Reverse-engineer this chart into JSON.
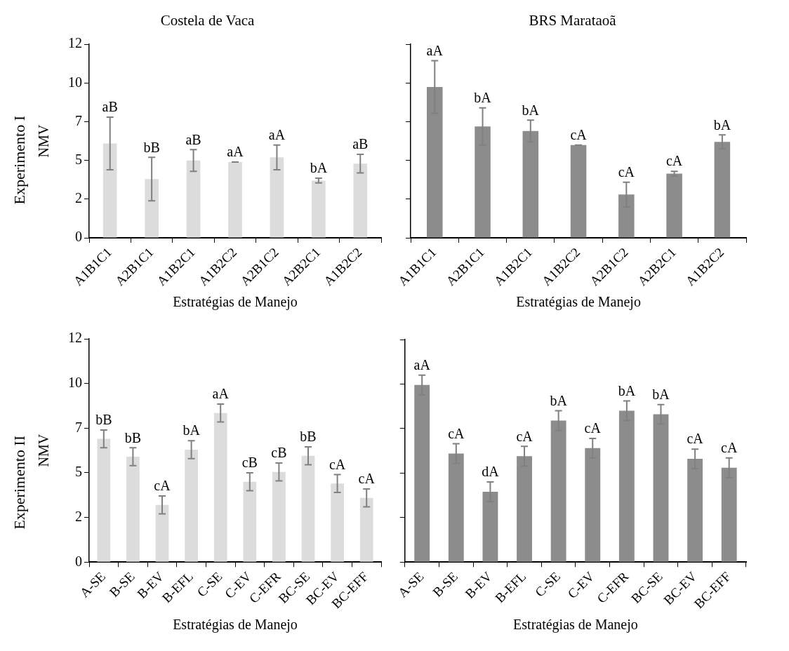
{
  "chart_data": [
    {
      "type": "bar",
      "title": "Costela de Vaca",
      "xlabel": "Estratégias de Manejo",
      "ylabel": "NMV",
      "annotations": [
        "Experimento I"
      ],
      "categories": [
        "A1B1C1",
        "A2B1C1",
        "A1B2C1",
        "A1B2C2",
        "A2B1C2",
        "A2B2C1",
        "A1B2C2"
      ],
      "values": [
        6.1,
        3.8,
        5.0,
        4.9,
        5.2,
        3.7,
        4.8
      ],
      "errors": [
        1.7,
        1.4,
        0.7,
        0,
        0.8,
        0.15,
        0.6
      ],
      "value_labels": [
        "aB",
        "bB",
        "aB",
        "aA",
        "aA",
        "bA",
        "aB"
      ],
      "color": "#dcdcdc",
      "ylim": [
        0,
        12.5
      ],
      "yticks": [
        0,
        {
          "value": 2.5,
          "label": "2"
        },
        5,
        {
          "value": 7.5,
          "label": "7"
        },
        10,
        {
          "value": 12.5,
          "label": "12"
        }
      ],
      "grid": false,
      "legend": false
    },
    {
      "type": "bar",
      "title": "BRS Marataoã",
      "xlabel": "Estratégias de Manejo",
      "categories": [
        "A1B1C1",
        "A2B1C1",
        "A1B2C1",
        "A1B2C2",
        "A2B1C2",
        "A2B2C1",
        "A1B2C2"
      ],
      "values": [
        9.75,
        7.2,
        6.9,
        6.0,
        2.8,
        4.15,
        6.2
      ],
      "errors": [
        1.7,
        1.2,
        0.7,
        0,
        0.8,
        0.15,
        0.45
      ],
      "value_labels": [
        "aA",
        "bA",
        "bA",
        "cA",
        "cA",
        "cA",
        "bA"
      ],
      "color": "#8c8c8c",
      "ylim": [
        0,
        12.5
      ],
      "yticks": [
        {
          "value": 0,
          "label": null
        },
        {
          "value": 2.5,
          "label": null
        },
        {
          "value": 5,
          "label": null
        },
        {
          "value": 7.5,
          "label": null
        },
        {
          "value": 10,
          "label": null
        },
        {
          "value": 12.5,
          "label": null
        }
      ],
      "grid": false,
      "legend": false,
      "tick_labels": "x"
    },
    {
      "type": "bar",
      "xlabel": "Estratégias de Manejo",
      "ylabel": "NMV",
      "annotations": [
        "Experimento II"
      ],
      "categories": [
        "A-SE",
        "B-SE",
        "B-EV",
        "B-EFL",
        "C-SE",
        "C-EV",
        "C-EFR",
        "BC-SE",
        "BC-EV",
        "BC-EFF"
      ],
      "values": [
        6.9,
        5.9,
        3.2,
        6.3,
        8.35,
        4.5,
        5.05,
        5.95,
        4.4,
        3.6
      ],
      "errors": [
        0.5,
        0.5,
        0.5,
        0.5,
        0.5,
        0.5,
        0.5,
        0.5,
        0.5,
        0.5
      ],
      "value_labels": [
        "bB",
        "bB",
        "cA",
        "bA",
        "aA",
        "cB",
        "cB",
        "bB",
        "cA",
        "cA"
      ],
      "color": "#dcdcdc",
      "ylim": [
        0,
        12.5
      ],
      "yticks": [
        0,
        {
          "value": 2.5,
          "label": "2"
        },
        5,
        {
          "value": 7.5,
          "label": "7"
        },
        10,
        {
          "value": 12.5,
          "label": "12"
        }
      ],
      "grid": false,
      "legend": false
    },
    {
      "type": "bar",
      "xlabel": "Estratégias de Manejo",
      "categories": [
        "A-SE",
        "B-SE",
        "B-EV",
        "B-EFL",
        "C-SE",
        "C-EV",
        "C-EFR",
        "BC-SE",
        "BC-EV",
        "BC-EFF"
      ],
      "values": [
        9.95,
        6.1,
        3.95,
        5.95,
        7.95,
        6.4,
        8.5,
        8.3,
        5.8,
        5.3
      ],
      "errors": [
        0.55,
        0.55,
        0.55,
        0.55,
        0.55,
        0.55,
        0.55,
        0.55,
        0.55,
        0.55
      ],
      "value_labels": [
        "aA",
        "cA",
        "dA",
        "cA",
        "bA",
        "cA",
        "bA",
        "bA",
        "cA",
        "cA"
      ],
      "color": "#8c8c8c",
      "ylim": [
        0,
        12.5
      ],
      "yticks": [
        {
          "value": 0,
          "label": null
        },
        {
          "value": 2.5,
          "label": null
        },
        {
          "value": 5,
          "label": null
        },
        {
          "value": 7.5,
          "label": null
        },
        {
          "value": 10,
          "label": null
        },
        {
          "value": 12.5,
          "label": null
        }
      ],
      "grid": false,
      "legend": false,
      "tick_labels": "x"
    }
  ]
}
